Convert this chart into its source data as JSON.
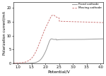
{
  "title": "",
  "xlabel": "Potential/V",
  "ylabel": "Polarization current/mA",
  "xlim": [
    0.85,
    4.1
  ],
  "ylim": [
    0,
    22
  ],
  "xticks": [
    1.0,
    1.5,
    2.0,
    2.5,
    3.0,
    3.5,
    4.0
  ],
  "yticks": [
    0,
    5,
    10,
    15,
    20
  ],
  "fixed_color": "#999999",
  "moving_color": "#cc7777",
  "legend": [
    "Fixed cathode",
    "Moving cathode"
  ],
  "background_color": "#ffffff"
}
